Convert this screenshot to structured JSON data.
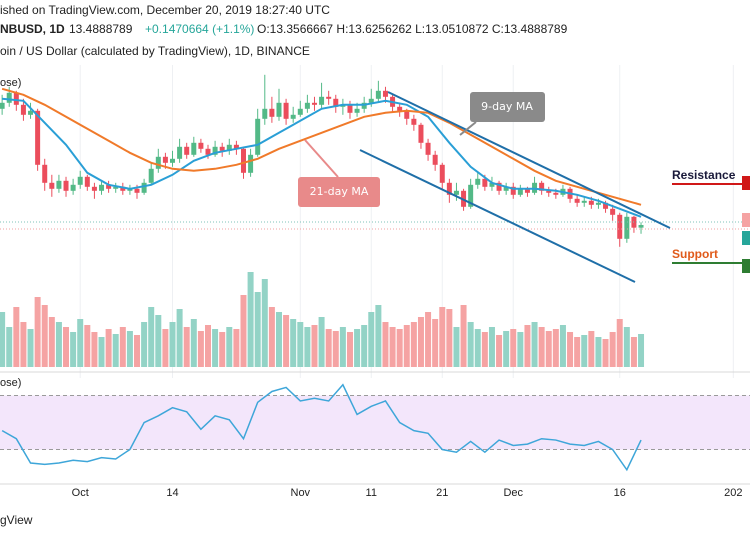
{
  "header": {
    "published": "ished on TradingView.com, December 20, 2019 18:27:40 UTC",
    "symbol": "NBUSD, 1D",
    "last": "13.4888789",
    "change": "+0.1470664 (+1.1%)",
    "ohlc": "O:13.3566667 H:13.6256262 L:13.0510872 C:13.4888789",
    "description": "oin / US Dollar (calculated by TradingView), 1D, BINANCE",
    "price_pane_label": "ose)",
    "rsi_pane_label": "ose)"
  },
  "annotations": {
    "ma9": "9-day MA",
    "ma21": "21-day MA",
    "resistance": "Resistance",
    "support": "Support"
  },
  "footer": "gView",
  "chart_data": [
    {
      "type": "candlestick",
      "up_color": "#53b987",
      "down_color": "#eb4d5c",
      "open": [
        19.3,
        19.6,
        20.1,
        19.5,
        19.0,
        19.2,
        16.5,
        15.6,
        15.3,
        15.7,
        15.2,
        15.5,
        15.9,
        15.4,
        15.2,
        15.5,
        15.3,
        15.4,
        15.2,
        15.3,
        15.1,
        15.6,
        16.3,
        16.9,
        16.6,
        16.8,
        17.4,
        17.0,
        17.6,
        17.3,
        17.0,
        17.4,
        17.2,
        17.5,
        17.3,
        16.1,
        17.0,
        18.8,
        19.3,
        18.9,
        19.6,
        18.8,
        19.0,
        19.3,
        19.6,
        19.5,
        19.9,
        19.8,
        19.4,
        19.5,
        19.1,
        19.3,
        19.6,
        19.8,
        20.2,
        19.9,
        19.4,
        19.2,
        18.8,
        18.5,
        17.6,
        17.0,
        16.5,
        15.6,
        15.0,
        15.2,
        14.4,
        15.5,
        15.8,
        15.4,
        15.6,
        15.2,
        15.4,
        15.0,
        15.3,
        15.1,
        15.6,
        15.2,
        15.1,
        15.0,
        15.3,
        14.8,
        14.6,
        14.7,
        14.5,
        14.6,
        14.3,
        14.0,
        12.8,
        13.9,
        13.3566667
      ],
      "high": [
        20.0,
        20.4,
        20.2,
        19.8,
        19.6,
        19.3,
        16.8,
        16.0,
        16.0,
        15.9,
        15.8,
        16.2,
        16.0,
        15.6,
        15.7,
        15.7,
        15.6,
        15.6,
        15.5,
        15.5,
        15.8,
        16.6,
        17.3,
        17.1,
        17.2,
        17.8,
        17.6,
        17.9,
        17.8,
        17.5,
        17.7,
        17.6,
        17.8,
        17.7,
        17.4,
        17.3,
        19.3,
        21.0,
        19.9,
        20.3,
        19.8,
        19.4,
        19.7,
        20.0,
        19.9,
        20.6,
        20.2,
        20.0,
        19.8,
        19.7,
        19.6,
        19.9,
        20.3,
        20.7,
        20.4,
        20.0,
        19.6,
        19.3,
        19.0,
        18.6,
        17.8,
        17.2,
        16.6,
        15.8,
        15.6,
        15.3,
        15.8,
        16.1,
        16.0,
        15.9,
        15.7,
        15.6,
        15.6,
        15.5,
        15.4,
        15.9,
        15.7,
        15.4,
        15.3,
        15.5,
        15.4,
        15.0,
        14.9,
        14.9,
        14.8,
        14.7,
        14.5,
        14.1,
        14.1,
        13.95,
        13.6256262
      ],
      "low": [
        19.0,
        19.4,
        19.2,
        18.7,
        18.8,
        16.2,
        15.2,
        14.9,
        15.1,
        14.9,
        15.0,
        15.3,
        15.2,
        14.8,
        15.0,
        15.1,
        15.1,
        15.0,
        15.0,
        14.8,
        15.0,
        15.5,
        16.1,
        16.3,
        16.4,
        16.6,
        16.8,
        16.9,
        17.1,
        16.8,
        16.9,
        16.9,
        17.0,
        17.0,
        15.8,
        15.9,
        16.9,
        18.5,
        18.6,
        18.7,
        18.5,
        18.6,
        18.9,
        19.1,
        19.2,
        19.3,
        19.5,
        19.1,
        19.0,
        18.8,
        18.9,
        19.1,
        19.4,
        19.6,
        19.6,
        19.1,
        18.9,
        18.5,
        18.2,
        17.3,
        16.7,
        16.2,
        15.3,
        14.6,
        14.7,
        14.2,
        14.3,
        15.3,
        15.2,
        15.2,
        15.0,
        15.0,
        14.8,
        14.9,
        14.9,
        15.0,
        15.0,
        14.9,
        14.8,
        14.9,
        14.6,
        14.4,
        14.4,
        14.3,
        14.3,
        14.1,
        13.7,
        12.4,
        12.6,
        13.1,
        13.0510872
      ],
      "close": [
        19.6,
        20.1,
        19.5,
        19.0,
        19.2,
        16.5,
        15.6,
        15.3,
        15.7,
        15.2,
        15.5,
        15.9,
        15.4,
        15.2,
        15.5,
        15.3,
        15.4,
        15.2,
        15.3,
        15.1,
        15.6,
        16.3,
        16.9,
        16.6,
        16.8,
        17.4,
        17.0,
        17.6,
        17.3,
        17.0,
        17.4,
        17.2,
        17.5,
        17.3,
        16.1,
        17.0,
        18.8,
        19.3,
        18.9,
        19.6,
        18.8,
        19.0,
        19.3,
        19.6,
        19.5,
        19.9,
        19.8,
        19.4,
        19.5,
        19.1,
        19.3,
        19.6,
        19.8,
        20.2,
        19.9,
        19.4,
        19.2,
        18.8,
        18.5,
        17.6,
        17.0,
        16.5,
        15.6,
        15.0,
        15.2,
        14.4,
        15.5,
        15.8,
        15.4,
        15.6,
        15.2,
        15.4,
        15.0,
        15.3,
        15.1,
        15.6,
        15.2,
        15.1,
        15.0,
        15.3,
        14.8,
        14.6,
        14.7,
        14.5,
        14.6,
        14.3,
        14.0,
        12.8,
        13.9,
        13.3566667,
        13.4888789
      ],
      "lines": [
        {
          "color": "#2a9fd6",
          "x": [
            0,
            3,
            6,
            9,
            12,
            15,
            18,
            21,
            24,
            27,
            30,
            33,
            36,
            39,
            42,
            45,
            48,
            51,
            54,
            57,
            60,
            63,
            66,
            69,
            72,
            75,
            78,
            81,
            84,
            87,
            90
          ],
          "values": [
            19.8,
            19.7,
            18.6,
            17.5,
            16.1,
            15.5,
            15.3,
            15.5,
            16.0,
            16.7,
            17.1,
            17.3,
            17.5,
            18.1,
            18.7,
            19.3,
            19.5,
            19.5,
            19.7,
            19.5,
            18.9,
            17.6,
            16.4,
            15.6,
            15.3,
            15.3,
            15.2,
            15.0,
            14.7,
            14.3,
            13.9
          ]
        },
        {
          "color": "#f07a2a",
          "x": [
            0,
            3,
            6,
            9,
            12,
            15,
            18,
            21,
            24,
            27,
            30,
            33,
            36,
            39,
            42,
            45,
            48,
            51,
            54,
            57,
            60,
            63,
            66,
            69,
            72,
            75,
            78,
            81,
            84,
            87,
            90
          ],
          "values": [
            20.3,
            20.0,
            19.5,
            18.9,
            18.3,
            17.7,
            17.1,
            16.6,
            16.3,
            16.2,
            16.3,
            16.5,
            16.8,
            17.3,
            17.7,
            18.1,
            18.5,
            18.9,
            19.1,
            19.2,
            19.1,
            18.6,
            18.0,
            17.4,
            16.8,
            16.2,
            15.7,
            15.4,
            15.1,
            14.8,
            14.5
          ]
        }
      ],
      "xlim": [
        -0.3,
        105.35
      ],
      "ylim": [
        6.24,
        21.49
      ],
      "xticks": [
        {
          "value": 11,
          "label": "Oct"
        },
        {
          "value": 24,
          "label": "14"
        },
        {
          "value": 42,
          "label": "Nov"
        },
        {
          "value": 52,
          "label": "11"
        },
        {
          "value": 62,
          "label": "21"
        },
        {
          "value": 72,
          "label": "Dec"
        },
        {
          "value": 87,
          "label": "16"
        },
        {
          "value": 103,
          "label": "202"
        }
      ],
      "grid": true
    },
    {
      "type": "bar",
      "up_color": "#93d3c6",
      "down_color": "#f5a3a3",
      "values": [
        55,
        40,
        60,
        45,
        38,
        70,
        62,
        50,
        45,
        40,
        35,
        48,
        42,
        35,
        30,
        38,
        33,
        40,
        36,
        32,
        45,
        60,
        52,
        38,
        45,
        58,
        40,
        48,
        36,
        42,
        38,
        35,
        40,
        38,
        72,
        95,
        75,
        88,
        60,
        55,
        52,
        48,
        45,
        40,
        42,
        50,
        38,
        36,
        40,
        35,
        38,
        42,
        55,
        62,
        45,
        40,
        38,
        42,
        45,
        50,
        55,
        48,
        60,
        58,
        40,
        62,
        45,
        38,
        35,
        40,
        32,
        36,
        38,
        35,
        42,
        45,
        40,
        36,
        38,
        42,
        35,
        30,
        32,
        36,
        30,
        28,
        35,
        48,
        40,
        30,
        33
      ],
      "ylim": [
        0,
        100
      ]
    },
    {
      "type": "line",
      "color": "#3ea6d9",
      "band_color": "#f3e6fb",
      "bands": [
        30,
        70
      ],
      "x": [
        0,
        2,
        4,
        6,
        8,
        10,
        12,
        14,
        16,
        18,
        20,
        22,
        24,
        26,
        28,
        30,
        32,
        34,
        36,
        38,
        40,
        42,
        44,
        46,
        48,
        50,
        52,
        54,
        56,
        58,
        60,
        62,
        64,
        66,
        68,
        70,
        72,
        74,
        76,
        78,
        80,
        82,
        84,
        86,
        88,
        90
      ],
      "values": [
        44,
        38,
        20,
        19,
        20,
        22,
        21,
        24,
        23,
        30,
        50,
        55,
        61,
        58,
        45,
        55,
        52,
        38,
        65,
        73,
        76,
        66,
        68,
        66,
        78,
        56,
        62,
        66,
        50,
        44,
        42,
        30,
        28,
        36,
        28,
        37,
        33,
        34,
        38,
        37,
        34,
        33,
        36,
        30,
        15,
        37
      ],
      "ylim": [
        7.4,
        83
      ]
    }
  ]
}
